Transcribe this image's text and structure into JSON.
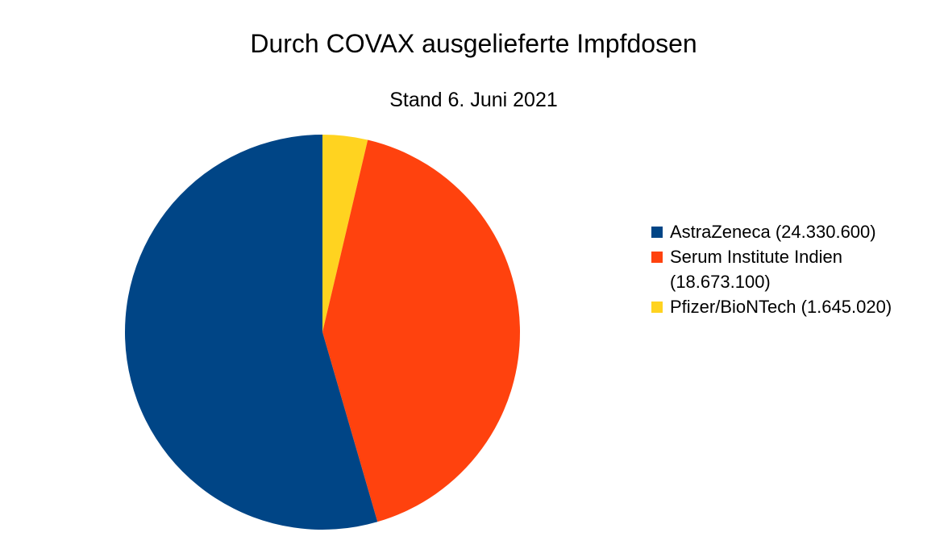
{
  "chart_data": {
    "type": "pie",
    "title": "Durch COVAX ausgelieferte Impfdosen",
    "subtitle": "Stand 6. Juni 2021",
    "legend_position": "right",
    "slices": [
      {
        "label": "AstraZeneca (24.330.600)",
        "value": 24330600,
        "color": "#004586"
      },
      {
        "label": "Serum Institute Indien (18.673.100)",
        "value": 18673100,
        "color": "#ff420e"
      },
      {
        "label": "Pfizer/BioNTech (1.645.020)",
        "value": 1645020,
        "color": "#ffd320"
      }
    ]
  }
}
